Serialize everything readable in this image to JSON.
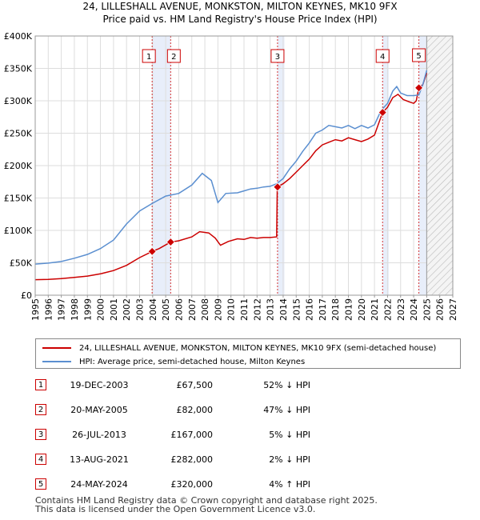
{
  "title_line1": "24, LILLESHALL AVENUE, MONKSTON, MILTON KEYNES, MK10 9FX",
  "title_line2": "Price paid vs. HM Land Registry's House Price Index (HPI)",
  "colors": {
    "property": "#cc0000",
    "hpi": "#5b8fd0",
    "shade": "#e8eefa",
    "grid": "#dddddd"
  },
  "chart_data": {
    "type": "line",
    "xlim": [
      1995,
      2027
    ],
    "ylim": [
      0,
      400000
    ],
    "grid": true,
    "legend_position": "below",
    "x_ticks": [
      "1995",
      "1996",
      "1997",
      "1998",
      "1999",
      "2000",
      "2001",
      "2002",
      "2003",
      "2004",
      "2005",
      "2006",
      "2007",
      "2008",
      "2009",
      "2010",
      "2011",
      "2012",
      "2013",
      "2014",
      "2015",
      "2016",
      "2017",
      "2018",
      "2019",
      "2020",
      "2021",
      "2022",
      "2023",
      "2024",
      "2025",
      "2026",
      "2027"
    ],
    "y_ticks": [
      {
        "value": 0,
        "label": "£0"
      },
      {
        "value": 50000,
        "label": "£50K"
      },
      {
        "value": 100000,
        "label": "£100K"
      },
      {
        "value": 150000,
        "label": "£150K"
      },
      {
        "value": 200000,
        "label": "£200K"
      },
      {
        "value": 250000,
        "label": "£250K"
      },
      {
        "value": 300000,
        "label": "£300K"
      },
      {
        "value": 350000,
        "label": "£350K"
      },
      {
        "value": 400000,
        "label": "£400K"
      }
    ],
    "future_hatch_from": 2025.0,
    "series": [
      {
        "name": "24, LILLESHALL AVENUE, MONKSTON, MILTON KEYNES, MK10 9FX (semi-detached house)",
        "role": "property",
        "points": [
          [
            1995.0,
            24000
          ],
          [
            1996.0,
            24500
          ],
          [
            1997.0,
            25500
          ],
          [
            1998.0,
            27500
          ],
          [
            1999.0,
            29500
          ],
          [
            2000.0,
            33000
          ],
          [
            2001.0,
            38000
          ],
          [
            2002.0,
            46000
          ],
          [
            2003.0,
            58000
          ],
          [
            2003.96,
            67500
          ],
          [
            2004.5,
            72000
          ],
          [
            2005.38,
            82000
          ],
          [
            2006.0,
            84000
          ],
          [
            2007.0,
            90000
          ],
          [
            2007.6,
            98000
          ],
          [
            2008.3,
            96000
          ],
          [
            2008.8,
            88000
          ],
          [
            2009.2,
            77000
          ],
          [
            2009.8,
            83000
          ],
          [
            2010.5,
            87000
          ],
          [
            2011.0,
            86000
          ],
          [
            2011.5,
            89000
          ],
          [
            2012.0,
            88000
          ],
          [
            2012.5,
            89000
          ],
          [
            2013.0,
            89000
          ],
          [
            2013.5,
            90000
          ],
          [
            2013.55,
            167000
          ],
          [
            2014.0,
            172000
          ],
          [
            2014.5,
            180000
          ],
          [
            2015.0,
            190000
          ],
          [
            2015.5,
            200000
          ],
          [
            2016.0,
            210000
          ],
          [
            2016.5,
            223000
          ],
          [
            2017.0,
            232000
          ],
          [
            2017.5,
            236000
          ],
          [
            2018.0,
            240000
          ],
          [
            2018.5,
            238000
          ],
          [
            2019.0,
            243000
          ],
          [
            2019.5,
            240000
          ],
          [
            2020.0,
            237000
          ],
          [
            2020.5,
            241000
          ],
          [
            2021.0,
            247000
          ],
          [
            2021.62,
            282000
          ],
          [
            2022.0,
            290000
          ],
          [
            2022.4,
            305000
          ],
          [
            2022.8,
            310000
          ],
          [
            2023.2,
            302000
          ],
          [
            2023.7,
            298000
          ],
          [
            2024.0,
            296000
          ],
          [
            2024.2,
            300000
          ],
          [
            2024.4,
            320000
          ],
          [
            2024.7,
            325000
          ],
          [
            2025.0,
            343000
          ]
        ]
      },
      {
        "name": "HPI: Average price, semi-detached house, Milton Keynes",
        "role": "hpi",
        "points": [
          [
            1995.0,
            48000
          ],
          [
            1996.0,
            49500
          ],
          [
            1997.0,
            52000
          ],
          [
            1998.0,
            57000
          ],
          [
            1999.0,
            63000
          ],
          [
            2000.0,
            72000
          ],
          [
            2001.0,
            85000
          ],
          [
            2002.0,
            110000
          ],
          [
            2003.0,
            130000
          ],
          [
            2004.0,
            142000
          ],
          [
            2005.0,
            153000
          ],
          [
            2006.0,
            157000
          ],
          [
            2007.0,
            170000
          ],
          [
            2007.8,
            188000
          ],
          [
            2008.5,
            177000
          ],
          [
            2009.0,
            143000
          ],
          [
            2009.6,
            157000
          ],
          [
            2010.5,
            158000
          ],
          [
            2011.0,
            161000
          ],
          [
            2011.5,
            164000
          ],
          [
            2012.0,
            165000
          ],
          [
            2012.5,
            167000
          ],
          [
            2013.0,
            168000
          ],
          [
            2013.5,
            172000
          ],
          [
            2014.0,
            180000
          ],
          [
            2014.5,
            195000
          ],
          [
            2015.0,
            207000
          ],
          [
            2015.5,
            222000
          ],
          [
            2016.0,
            235000
          ],
          [
            2016.5,
            250000
          ],
          [
            2017.0,
            255000
          ],
          [
            2017.5,
            262000
          ],
          [
            2018.0,
            260000
          ],
          [
            2018.5,
            258000
          ],
          [
            2019.0,
            262000
          ],
          [
            2019.5,
            257000
          ],
          [
            2020.0,
            262000
          ],
          [
            2020.5,
            258000
          ],
          [
            2021.0,
            263000
          ],
          [
            2021.5,
            285000
          ],
          [
            2022.0,
            296000
          ],
          [
            2022.4,
            315000
          ],
          [
            2022.7,
            322000
          ],
          [
            2023.0,
            312000
          ],
          [
            2023.5,
            308000
          ],
          [
            2024.0,
            308000
          ],
          [
            2024.4,
            309000
          ],
          [
            2024.7,
            325000
          ],
          [
            2025.0,
            347000
          ]
        ]
      }
    ],
    "sales": [
      {
        "n": "1",
        "x": 2003.96,
        "price": 67500
      },
      {
        "n": "2",
        "x": 2005.38,
        "price": 82000
      },
      {
        "n": "3",
        "x": 2013.57,
        "price": 167000
      },
      {
        "n": "4",
        "x": 2021.62,
        "price": 282000
      },
      {
        "n": "5",
        "x": 2024.4,
        "price": 320000
      }
    ],
    "shaded_ranges": [
      [
        2003.96,
        2005.38
      ],
      [
        2013.57,
        2014.1
      ],
      [
        2021.62,
        2022.1
      ],
      [
        2024.4,
        2025.0
      ]
    ]
  },
  "legend": [
    {
      "label": "24, LILLESHALL AVENUE, MONKSTON, MILTON KEYNES, MK10 9FX (semi-detached house)",
      "color": "#cc0000"
    },
    {
      "label": "HPI: Average price, semi-detached house, Milton Keynes",
      "color": "#5b8fd0"
    }
  ],
  "sales_table": [
    {
      "num": "1",
      "date": "19-DEC-2003",
      "price": "£67,500",
      "hpi": "52% ↓ HPI"
    },
    {
      "num": "2",
      "date": "20-MAY-2005",
      "price": "£82,000",
      "hpi": "47% ↓ HPI"
    },
    {
      "num": "3",
      "date": "26-JUL-2013",
      "price": "£167,000",
      "hpi": "5% ↓ HPI"
    },
    {
      "num": "4",
      "date": "13-AUG-2021",
      "price": "£282,000",
      "hpi": "2% ↓ HPI"
    },
    {
      "num": "5",
      "date": "24-MAY-2024",
      "price": "£320,000",
      "hpi": "4% ↑ HPI"
    }
  ],
  "footer_line1": "Contains HM Land Registry data © Crown copyright and database right 2025.",
  "footer_line2": "This data is licensed under the Open Government Licence v3.0."
}
